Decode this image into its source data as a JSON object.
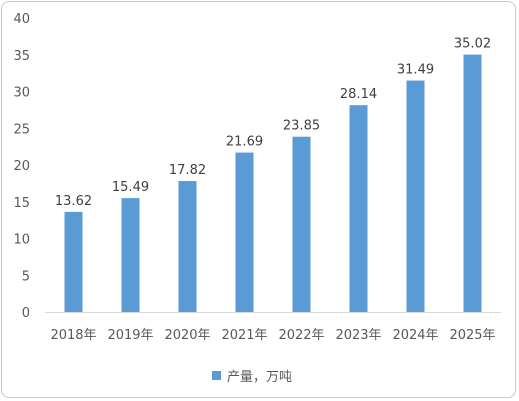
{
  "chart_data": {
    "type": "bar",
    "categories": [
      "2018年",
      "2019年",
      "2020年",
      "2021年",
      "2022年",
      "2023年",
      "2024年",
      "2025年"
    ],
    "series": [
      {
        "name": "产量，万吨",
        "values": [
          13.62,
          15.49,
          17.82,
          21.69,
          23.85,
          28.14,
          31.49,
          35.02
        ],
        "color": "#5b9bd5"
      }
    ],
    "ylim": [
      0,
      40
    ],
    "yticks": [
      0,
      5,
      10,
      15,
      20,
      25,
      30,
      35,
      40
    ],
    "grid": false,
    "data_labels": true,
    "legend_position": "bottom",
    "xlabel": "",
    "ylabel": "",
    "title": ""
  }
}
